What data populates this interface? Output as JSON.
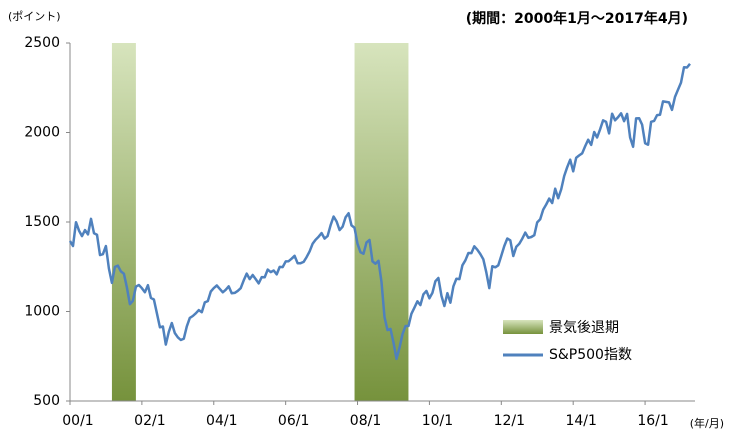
{
  "chart_data": {
    "type": "line",
    "period_note": "(期間：2000年1月～2017年4月)",
    "y_unit": "(ポイント)",
    "x_unit": "(年/月)",
    "xlim": [
      0,
      207
    ],
    "xticks": [
      {
        "value": 0,
        "label": "00/1"
      },
      {
        "value": 24,
        "label": "02/1"
      },
      {
        "value": 48,
        "label": "04/1"
      },
      {
        "value": 72,
        "label": "06/1"
      },
      {
        "value": 96,
        "label": "08/1"
      },
      {
        "value": 120,
        "label": "10/1"
      },
      {
        "value": 144,
        "label": "12/1"
      },
      {
        "value": 168,
        "label": "14/1"
      },
      {
        "value": 192,
        "label": "16/1"
      }
    ],
    "ylim": [
      500,
      2500
    ],
    "yticks": [
      500,
      1000,
      1500,
      2000,
      2500
    ],
    "recession": {
      "name": "景気後退期",
      "color_top": "#d7e4bd",
      "color_bottom": "#76923c",
      "spans": [
        [
          14,
          22
        ],
        [
          95,
          113
        ]
      ]
    },
    "series": [
      {
        "name": "S&P500指数",
        "color": "#4f81bd",
        "values": [
          1394,
          1366,
          1499,
          1452,
          1421,
          1455,
          1431,
          1518,
          1437,
          1429,
          1315,
          1320,
          1366,
          1240,
          1160,
          1249,
          1256,
          1224,
          1211,
          1134,
          1041,
          1060,
          1139,
          1148,
          1130,
          1107,
          1147,
          1076,
          1067,
          990,
          912,
          916,
          815,
          886,
          936,
          880,
          856,
          841,
          848,
          917,
          964,
          975,
          990,
          1008,
          996,
          1051,
          1058,
          1112,
          1131,
          1145,
          1126,
          1107,
          1121,
          1141,
          1102,
          1104,
          1115,
          1130,
          1174,
          1212,
          1181,
          1204,
          1181,
          1157,
          1192,
          1191,
          1234,
          1220,
          1229,
          1207,
          1249,
          1248,
          1280,
          1281,
          1295,
          1311,
          1270,
          1270,
          1277,
          1304,
          1336,
          1378,
          1401,
          1418,
          1438,
          1407,
          1421,
          1482,
          1531,
          1503,
          1455,
          1474,
          1527,
          1549,
          1481,
          1468,
          1379,
          1331,
          1323,
          1386,
          1400,
          1280,
          1267,
          1283,
          1165,
          969,
          896,
          903,
          826,
          735,
          798,
          873,
          919,
          919,
          987,
          1021,
          1057,
          1036,
          1096,
          1115,
          1074,
          1104,
          1169,
          1187,
          1089,
          1031,
          1102,
          1049,
          1141,
          1183,
          1181,
          1258,
          1286,
          1327,
          1326,
          1364,
          1345,
          1321,
          1292,
          1219,
          1131,
          1253,
          1247,
          1258,
          1312,
          1366,
          1408,
          1398,
          1310,
          1362,
          1379,
          1407,
          1441,
          1412,
          1416,
          1426,
          1498,
          1515,
          1569,
          1598,
          1631,
          1606,
          1686,
          1633,
          1682,
          1757,
          1806,
          1848,
          1783,
          1859,
          1872,
          1884,
          1924,
          1960,
          1931,
          2003,
          1972,
          2018,
          2068,
          2059,
          1995,
          2105,
          2068,
          2086,
          2107,
          2063,
          2104,
          1972,
          1920,
          2079,
          2080,
          2044,
          1940,
          1932,
          2060,
          2065,
          2097,
          2099,
          2174,
          2171,
          2168,
          2126,
          2199,
          2239,
          2279,
          2364,
          2363,
          2384
        ]
      }
    ]
  }
}
